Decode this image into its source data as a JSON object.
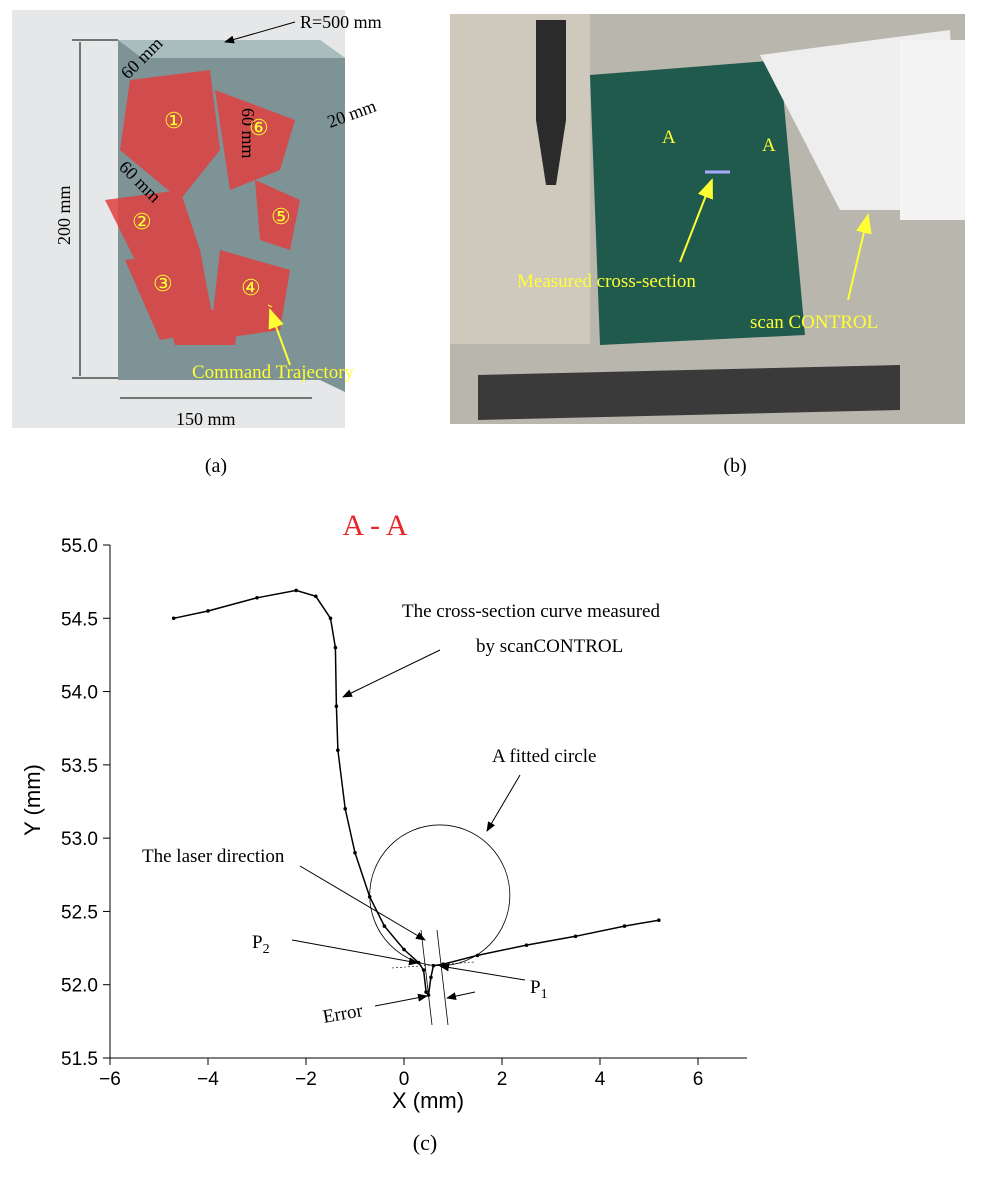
{
  "panel_a": {
    "caption": "(a)",
    "radius_label": "R=500 mm",
    "pitch_labels": [
      "60 mm",
      "60 mm",
      "60 mm"
    ],
    "thickness_label": "20 mm",
    "height_label": "200 mm",
    "width_label": "150 mm",
    "trajectory_label": "Command Trajectory",
    "region_numbers": [
      "①",
      "②",
      "③",
      "④",
      "⑤",
      "⑥"
    ]
  },
  "panel_b": {
    "caption": "(b)",
    "section_marks": [
      "A",
      "A"
    ],
    "section_label": "Measured cross-section",
    "sensor_label": "scan CONTROL"
  },
  "chart_data": {
    "type": "line",
    "title": "A - A",
    "caption": "(c)",
    "x_label": "X (mm)",
    "y_label": "Y (mm)",
    "xlim": [
      -6,
      7
    ],
    "ylim": [
      51.5,
      55
    ],
    "xticks": [
      {
        "value": -6,
        "label": "−6"
      },
      {
        "value": -4,
        "label": "−4"
      },
      {
        "value": -2,
        "label": "−2"
      },
      0,
      2,
      4,
      6
    ],
    "yticks": [
      {
        "value": 51.5,
        "label": "51.5"
      },
      {
        "value": 52,
        "label": "52.0"
      },
      52.5,
      {
        "value": 53,
        "label": "53.0"
      },
      53.5,
      {
        "value": 54,
        "label": "54.0"
      },
      54.5,
      {
        "value": 55,
        "label": "55.0"
      }
    ],
    "series": [
      {
        "color": "#000000",
        "x": [
          -4.7,
          -4.0,
          -3.0,
          -2.2,
          -1.8,
          -1.5,
          -1.4,
          -1.38,
          -1.35,
          -1.2,
          -1.0,
          -0.7,
          -0.4,
          0.0,
          0.3,
          0.4,
          0.45,
          0.5,
          0.55,
          0.6,
          0.8,
          1.5,
          2.5,
          3.5,
          4.5,
          5.2
        ],
        "values": [
          54.5,
          54.55,
          54.64,
          54.69,
          54.65,
          54.5,
          54.3,
          53.9,
          53.6,
          53.2,
          52.9,
          52.6,
          52.4,
          52.24,
          52.15,
          52.1,
          51.95,
          51.93,
          52.05,
          52.13,
          52.14,
          52.2,
          52.27,
          52.33,
          52.4,
          52.44
        ]
      }
    ],
    "fitted_circle": {
      "center": [
        0.73,
        52.61
      ],
      "radius_x": 1.43,
      "radius_y": 0.48
    },
    "annotations": {
      "curve_note": [
        "The cross-section curve measured",
        "by scanCONTROL"
      ],
      "circle_note": "A fitted circle",
      "laser_note": "The laser direction",
      "p2": {
        "text": "P",
        "sub": "2"
      },
      "p1": {
        "text": "P",
        "sub": "1"
      },
      "error_note": "Error"
    }
  }
}
